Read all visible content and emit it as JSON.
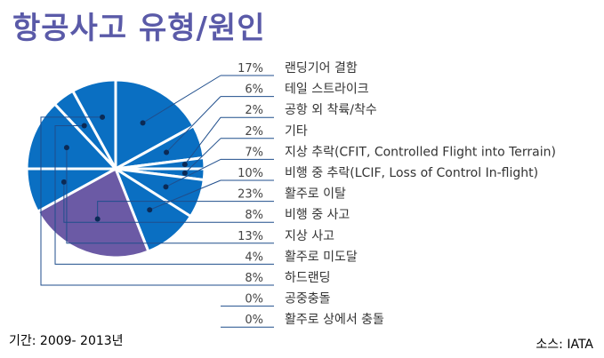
{
  "title": "항공사고 유형/원인",
  "period": "기간: 2009- 2013년",
  "source": "소스: IATA",
  "colors": {
    "title": "#5a5aa8",
    "slice_blue": "#0a6fc2",
    "slice_highlight": "#6b5aa5",
    "slice_border": "#ffffff",
    "leader_line": "#1f4e8c",
    "text": "#333333"
  },
  "chart_data": {
    "type": "pie",
    "title": "항공사고 유형/원인",
    "highlighted_slice": "활주로 이탈",
    "slices": [
      {
        "label": "랜딩기어 결함",
        "value": 17,
        "display": "17%"
      },
      {
        "label": "테일 스트라이크",
        "value": 6,
        "display": "6%"
      },
      {
        "label": "공항 외 착륙/착수",
        "value": 2,
        "display": "2%"
      },
      {
        "label": "기타",
        "value": 2,
        "display": "2%"
      },
      {
        "label": "지상 추락(CFIT, Controlled Flight into Terrain)",
        "value": 7,
        "display": "7%"
      },
      {
        "label": "비행 중 추락(LCIF, Loss of Control In-flight)",
        "value": 10,
        "display": "10%"
      },
      {
        "label": "활주로 이탈",
        "value": 23,
        "display": "23%"
      },
      {
        "label": "비행 중 사고",
        "value": 8,
        "display": "8%"
      },
      {
        "label": "지상 사고",
        "value": 13,
        "display": "13%"
      },
      {
        "label": "활주로 미도달",
        "value": 4,
        "display": "4%"
      },
      {
        "label": "하드랜딩",
        "value": 8,
        "display": "8%"
      },
      {
        "label": "공중충돌",
        "value": 0,
        "display": "0%"
      },
      {
        "label": "활주로 상에서 충돌",
        "value": 0,
        "display": "0%"
      }
    ]
  }
}
